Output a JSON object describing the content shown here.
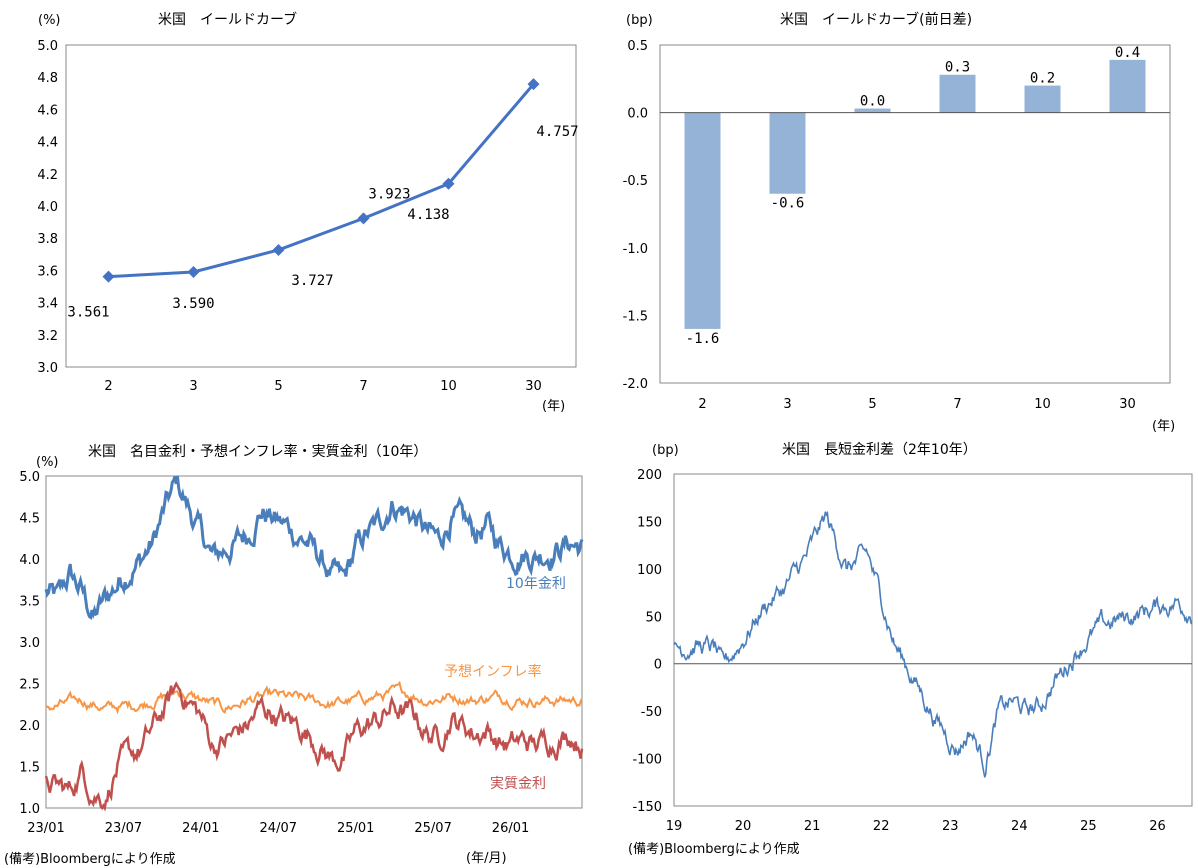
{
  "chart_data": [
    {
      "type": "line",
      "title": "米国　イールドカーブ",
      "ylabel": "(%)",
      "xlabel": "(年)",
      "categories": [
        "2",
        "3",
        "5",
        "7",
        "10",
        "30"
      ],
      "values": [
        3.561,
        3.59,
        3.727,
        3.923,
        4.138,
        4.757
      ],
      "data_labels": [
        "3.561",
        "3.590",
        "3.727",
        "3.923",
        "4.138",
        "4.757"
      ],
      "ylim": [
        3.0,
        5.0
      ],
      "yticks": [
        "5.0",
        "4.8",
        "4.6",
        "4.4",
        "4.2",
        "4.0",
        "3.8",
        "3.6",
        "3.4",
        "3.2",
        "3.0"
      ],
      "color": "#4472C4"
    },
    {
      "type": "bar",
      "title": "米国　イールドカーブ(前日差)",
      "ylabel": "(bp)",
      "xlabel": "(年)",
      "categories": [
        "2",
        "3",
        "5",
        "7",
        "10",
        "30"
      ],
      "values": [
        -1.6,
        -0.6,
        0.03,
        0.28,
        0.2,
        0.39
      ],
      "data_labels": [
        "-1.6",
        "-0.6",
        "0.0",
        "0.3",
        "0.2",
        "0.4"
      ],
      "ylim": [
        -2.0,
        0.5
      ],
      "yticks": [
        "0.5",
        "0.0",
        "-0.5",
        "-1.0",
        "-1.5",
        "-2.0"
      ],
      "color": "#95B3D7"
    },
    {
      "type": "line",
      "title": "米国　名目金利・予想インフレ率・実質金利（10年）",
      "ylabel": "(%)",
      "xlabel": "(年/月)",
      "categories": [
        "23/01",
        "23/07",
        "24/01",
        "24/07",
        "25/01",
        "25/07",
        "26/01"
      ],
      "ylim": [
        1.0,
        5.0
      ],
      "yticks": [
        "5.0",
        "4.5",
        "4.0",
        "3.5",
        "3.0",
        "2.5",
        "2.0",
        "1.5",
        "1.0"
      ],
      "series": [
        {
          "name": "10年金利",
          "color": "#4A7EBB",
          "anchors": [
            [
              0,
              3.6
            ],
            [
              1,
              3.5
            ],
            [
              2,
              3.8
            ],
            [
              3,
              3.6
            ],
            [
              4,
              3.3
            ],
            [
              5,
              3.5
            ],
            [
              6,
              3.7
            ],
            [
              7,
              3.9
            ],
            [
              8,
              4.0
            ],
            [
              9,
              4.2
            ],
            [
              10,
              4.6
            ],
            [
              11,
              4.9
            ],
            [
              12,
              4.6
            ],
            [
              13,
              4.3
            ],
            [
              14,
              4.0
            ],
            [
              15,
              4.1
            ],
            [
              16,
              4.2
            ],
            [
              17,
              4.3
            ],
            [
              18,
              4.6
            ],
            [
              19,
              4.5
            ],
            [
              20,
              4.4
            ],
            [
              21,
              4.3
            ],
            [
              22,
              4.2
            ],
            [
              23,
              4.0
            ],
            [
              24,
              3.8
            ],
            [
              25,
              3.7
            ],
            [
              26,
              4.1
            ],
            [
              27,
              4.3
            ],
            [
              28,
              4.4
            ],
            [
              29,
              4.7
            ],
            [
              30,
              4.6
            ],
            [
              31,
              4.5
            ],
            [
              32,
              4.3
            ],
            [
              33,
              4.2
            ],
            [
              34,
              4.5
            ],
            [
              35,
              4.4
            ],
            [
              36,
              4.3
            ],
            [
              37,
              4.4
            ],
            [
              38,
              4.2
            ],
            [
              39,
              4.1
            ],
            [
              40,
              4.1
            ],
            [
              41,
              4.05
            ],
            [
              42,
              4.1
            ],
            [
              43,
              4.15
            ],
            [
              44,
              4.2
            ],
            [
              45,
              4.15
            ]
          ]
        },
        {
          "name": "予想インフレ率",
          "color": "#F79646",
          "anchors": [
            [
              0,
              2.2
            ],
            [
              3,
              2.3
            ],
            [
              5,
              2.2
            ],
            [
              8,
              2.25
            ],
            [
              10,
              2.35
            ],
            [
              11,
              2.4
            ],
            [
              13,
              2.3
            ],
            [
              15,
              2.2
            ],
            [
              17,
              2.3
            ],
            [
              19,
              2.35
            ],
            [
              22,
              2.3
            ],
            [
              24,
              2.25
            ],
            [
              26,
              2.3
            ],
            [
              28,
              2.35
            ],
            [
              30,
              2.4
            ],
            [
              32,
              2.3
            ],
            [
              34,
              2.35
            ],
            [
              36,
              2.3
            ],
            [
              38,
              2.35
            ],
            [
              40,
              2.3
            ],
            [
              42,
              2.3
            ],
            [
              45,
              2.3
            ]
          ]
        },
        {
          "name": "実質金利",
          "color": "#C0504D",
          "anchors": [
            [
              0,
              1.3
            ],
            [
              2,
              1.2
            ],
            [
              3,
              1.45
            ],
            [
              4,
              1.2
            ],
            [
              5,
              1.15
            ],
            [
              6,
              1.5
            ],
            [
              7,
              1.6
            ],
            [
              8,
              1.7
            ],
            [
              9,
              1.95
            ],
            [
              10,
              2.2
            ],
            [
              11,
              2.45
            ],
            [
              12,
              2.3
            ],
            [
              13,
              2.1
            ],
            [
              14,
              1.75
            ],
            [
              15,
              1.8
            ],
            [
              16,
              1.9
            ],
            [
              17,
              2.0
            ],
            [
              18,
              2.2
            ],
            [
              19,
              2.15
            ],
            [
              20,
              2.05
            ],
            [
              21,
              2.0
            ],
            [
              22,
              1.9
            ],
            [
              23,
              1.75
            ],
            [
              24,
              1.6
            ],
            [
              25,
              1.6
            ],
            [
              26,
              1.9
            ],
            [
              27,
              2.0
            ],
            [
              28,
              2.05
            ],
            [
              29,
              2.2
            ],
            [
              30,
              2.15
            ],
            [
              31,
              2.1
            ],
            [
              32,
              1.9
            ],
            [
              33,
              1.85
            ],
            [
              34,
              2.1
            ],
            [
              35,
              2.0
            ],
            [
              36,
              1.9
            ],
            [
              37,
              1.95
            ],
            [
              38,
              1.8
            ],
            [
              39,
              1.75
            ],
            [
              40,
              1.8
            ],
            [
              41,
              1.75
            ],
            [
              42,
              1.8
            ],
            [
              43,
              1.85
            ],
            [
              44,
              1.9
            ],
            [
              45,
              1.8
            ]
          ]
        }
      ]
    },
    {
      "type": "line",
      "title": "米国　長短金利差（2年10年）",
      "ylabel": "(bp)",
      "categories": [
        "19",
        "20",
        "21",
        "22",
        "23",
        "24",
        "25",
        "26"
      ],
      "ylim": [
        -150,
        200
      ],
      "yticks": [
        "200",
        "150",
        "100",
        "50",
        "0",
        "-50",
        "-100",
        "-150"
      ],
      "series": [
        {
          "name": "2年10年",
          "color": "#4A7EBB",
          "anchors": [
            [
              0,
              15
            ],
            [
              0.3,
              20
            ],
            [
              0.6,
              15
            ],
            [
              0.7,
              -5
            ],
            [
              1.0,
              25
            ],
            [
              1.3,
              60
            ],
            [
              1.6,
              80
            ],
            [
              1.9,
              110
            ],
            [
              2.2,
              155
            ],
            [
              2.5,
              100
            ],
            [
              2.8,
              115
            ],
            [
              3.0,
              70
            ],
            [
              3.2,
              20
            ],
            [
              3.5,
              -20
            ],
            [
              3.8,
              -60
            ],
            [
              4.1,
              -90
            ],
            [
              4.3,
              -70
            ],
            [
              4.5,
              -105
            ],
            [
              4.7,
              -50
            ],
            [
              4.9,
              -40
            ],
            [
              5.1,
              -50
            ],
            [
              5.3,
              -45
            ],
            [
              5.5,
              -20
            ],
            [
              5.7,
              0
            ],
            [
              5.9,
              20
            ],
            [
              6.2,
              40
            ],
            [
              6.6,
              50
            ],
            [
              7.0,
              60
            ],
            [
              7.3,
              65
            ],
            [
              7.5,
              55
            ]
          ]
        }
      ]
    }
  ],
  "notes": {
    "left": "(備考)Bloombergにより作成",
    "right": "(備考)Bloombergにより作成"
  }
}
